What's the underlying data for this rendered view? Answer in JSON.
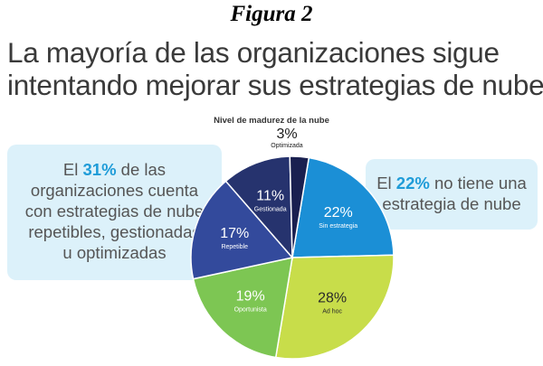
{
  "figure_label": "Figura 2",
  "headline": {
    "line1": "La mayoría de las organizaciones sigue",
    "line2": "intentando mejorar sus estrategias de nube"
  },
  "callout_left": {
    "pre": "El ",
    "highlight": "31%",
    "post": " de las",
    "line2": "organizaciones cuenta",
    "line3": "con estrategias de nube",
    "line4": "repetibles, gestionadas",
    "line5": "u optimizadas"
  },
  "callout_right": {
    "pre": "El ",
    "highlight": "22%",
    "post": " no tiene una",
    "line2": "estrategia de nube"
  },
  "colors": {
    "accent": "#1f9cd8",
    "callout_bg": "#dcf1fa"
  },
  "chart_data": {
    "type": "pie",
    "title": "Nivel de madurez de la nube",
    "slices": [
      {
        "label": "Sin estrategia",
        "value": 22,
        "pct_label": "22%",
        "color": "#1b8fd6",
        "text_color": "#ffffff"
      },
      {
        "label": "Ad hoc",
        "value": 28,
        "pct_label": "28%",
        "color": "#c8dd4a",
        "text_color": "#2a2a2a"
      },
      {
        "label": "Oportunista",
        "value": 19,
        "pct_label": "19%",
        "color": "#7dc653",
        "text_color": "#ffffff"
      },
      {
        "label": "Repetible",
        "value": 17,
        "pct_label": "17%",
        "color": "#334a9c",
        "text_color": "#ffffff"
      },
      {
        "label": "Gestionada",
        "value": 11,
        "pct_label": "11%",
        "color": "#26336e",
        "text_color": "#ffffff"
      },
      {
        "label": "Optimizada",
        "value": 3,
        "pct_label": "3%",
        "color": "#1a2050",
        "text_color": "#1a1a1a"
      }
    ]
  }
}
